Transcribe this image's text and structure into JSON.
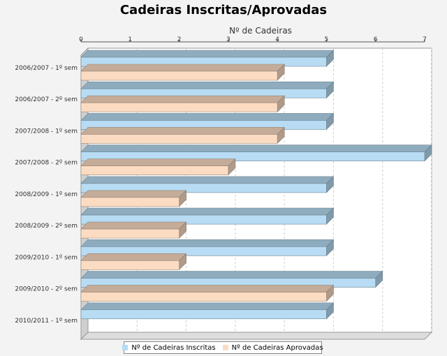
{
  "chart_data": {
    "type": "bar",
    "orientation": "horizontal",
    "title": "Cadeiras Inscritas/Aprovadas",
    "xlabel": "Nº de Cadeiras",
    "ylabel": "",
    "xlim": [
      0,
      7
    ],
    "x_ticks": [
      "0",
      "1",
      "2",
      "3",
      "4",
      "5",
      "6",
      "7"
    ],
    "grid": true,
    "legend_position": "bottom",
    "categories": [
      "2006/2007 - 1º sem",
      "2006/2007 - 2º sem",
      "2007/2008 - 1º sem",
      "2007/2008 - 2º sem",
      "2008/2009 - 1º sem",
      "2008/2009 - 2º sem",
      "2009/2010 - 1º sem",
      "2009/2010 - 2º sem",
      "2010/2011 - 1º sem"
    ],
    "series": [
      {
        "name": "Nº de Cadeiras Inscritas",
        "color": "#b7dcf4",
        "values": [
          5,
          5,
          5,
          7,
          5,
          5,
          5,
          6,
          5
        ]
      },
      {
        "name": "Nº de Cadeiras Aprovadas",
        "color": "#fbdcc3",
        "values": [
          4,
          4,
          4,
          3,
          2,
          2,
          2,
          5,
          null
        ]
      }
    ]
  }
}
